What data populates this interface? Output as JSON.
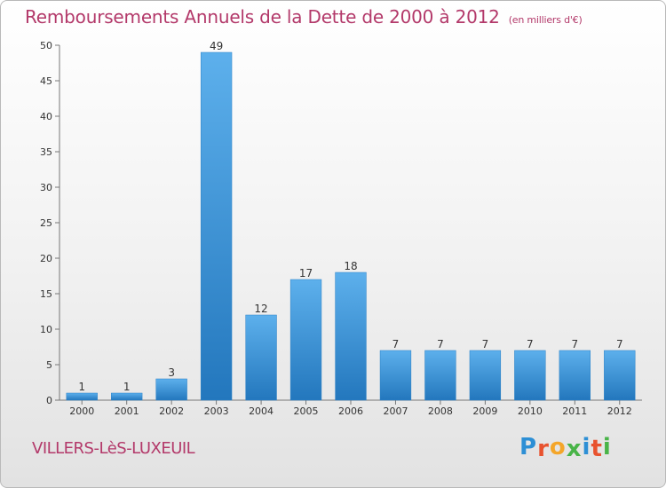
{
  "title": "Remboursements Annuels de la Dette de 2000 à 2012",
  "unit": "(en milliers d'€)",
  "commune": "VILLERS-LèS-LUXEUIL",
  "logo": {
    "letters": [
      "P",
      "r",
      "o",
      "x",
      "i",
      "t",
      "i"
    ],
    "colors": [
      "#2d8fd5",
      "#e8532f",
      "#f4a62a",
      "#49b448",
      "#2d8fd5",
      "#e8532f",
      "#49b448"
    ]
  },
  "chart_data": {
    "type": "bar",
    "categories": [
      "2000",
      "2001",
      "2002",
      "2003",
      "2004",
      "2005",
      "2006",
      "2007",
      "2008",
      "2009",
      "2010",
      "2011",
      "2012"
    ],
    "values": [
      1,
      1,
      3,
      49,
      12,
      17,
      18,
      7,
      7,
      7,
      7,
      7,
      7
    ],
    "data_labels": [
      "1",
      "1",
      "3",
      "49",
      "12",
      "17",
      "18",
      "7",
      "7",
      "7",
      "7",
      "7",
      "7"
    ],
    "title": "Remboursements Annuels de la Dette de 2000 à 2012",
    "xlabel": "",
    "ylabel": "",
    "ylim": [
      0,
      50
    ],
    "yticks": [
      "0",
      "5",
      "10",
      "15",
      "20",
      "25",
      "30",
      "35",
      "40",
      "45",
      "50"
    ],
    "grid": false,
    "bar_color": "#3b97dc"
  }
}
